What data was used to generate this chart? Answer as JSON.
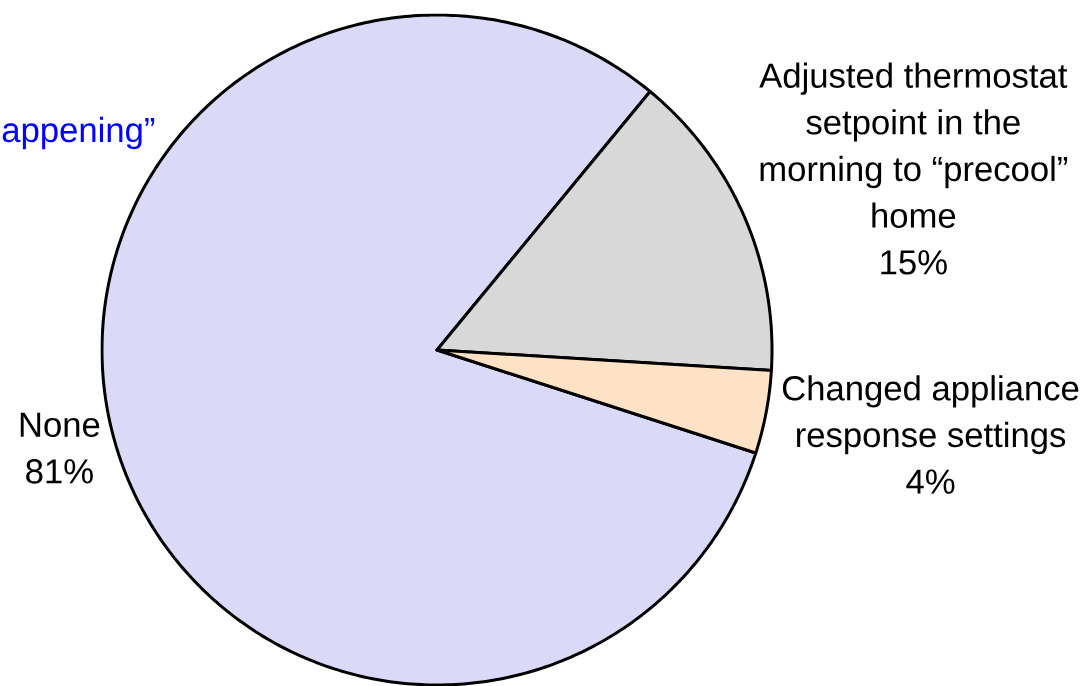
{
  "chart_data": {
    "type": "pie",
    "categories": [
      "None",
      "Adjusted thermostat setpoint in the morning to “precool” home",
      "Changed appliance response settings"
    ],
    "values": [
      81,
      15,
      4
    ],
    "colors": [
      "#dadaf8",
      "#d8d8d8",
      "#fee2c6"
    ],
    "value_labels": [
      "81%",
      "15%",
      "4%"
    ],
    "annotations": [
      "appening”"
    ]
  }
}
